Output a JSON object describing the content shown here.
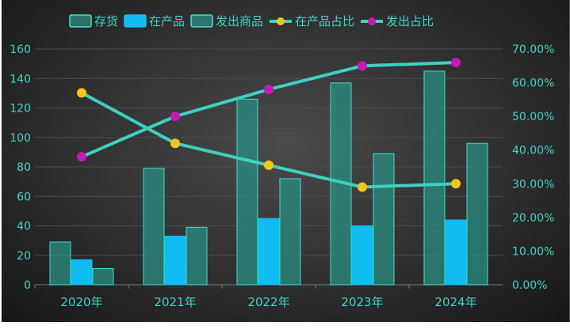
{
  "chart_data": {
    "type": "bar",
    "categories": [
      "2020年",
      "2021年",
      "2022年",
      "2023年",
      "2024年"
    ],
    "series": [
      {
        "name": "存货",
        "kind": "bar",
        "axis": "left",
        "values": [
          29,
          79,
          126,
          137,
          145
        ],
        "color": "#2a8f82",
        "stroke": "#3fe0c8"
      },
      {
        "name": "在产品",
        "kind": "bar",
        "axis": "left",
        "values": [
          17,
          33,
          45,
          40,
          44
        ],
        "color": "#0fbdf2",
        "stroke": "#0fbdf2"
      },
      {
        "name": "发出商品",
        "kind": "bar",
        "axis": "left",
        "values": [
          11,
          39,
          72,
          89,
          96
        ],
        "color": "#2a8f82",
        "stroke": "#3fe0c8"
      },
      {
        "name": "在产品占比",
        "kind": "line",
        "axis": "right",
        "values": [
          57,
          42,
          35.5,
          29,
          30
        ],
        "color": "#3ed0c0",
        "marker": "#f5c518"
      },
      {
        "name": "发出占比",
        "kind": "line",
        "axis": "right",
        "values": [
          38,
          50,
          58,
          65,
          66
        ],
        "color": "#3ed0c0",
        "marker": "#cc16b8"
      }
    ],
    "y_left": {
      "min": 0,
      "max": 160,
      "ticks": [
        "0",
        "20",
        "40",
        "60",
        "80",
        "100",
        "120",
        "140",
        "160"
      ]
    },
    "y_right": {
      "min": 0,
      "max": 70,
      "ticks": [
        "0.00%",
        "10.00%",
        "20.00%",
        "30.00%",
        "40.00%",
        "50.00%",
        "60.00%",
        "70.00%"
      ]
    },
    "legend_position": "top-center",
    "grid": true
  }
}
